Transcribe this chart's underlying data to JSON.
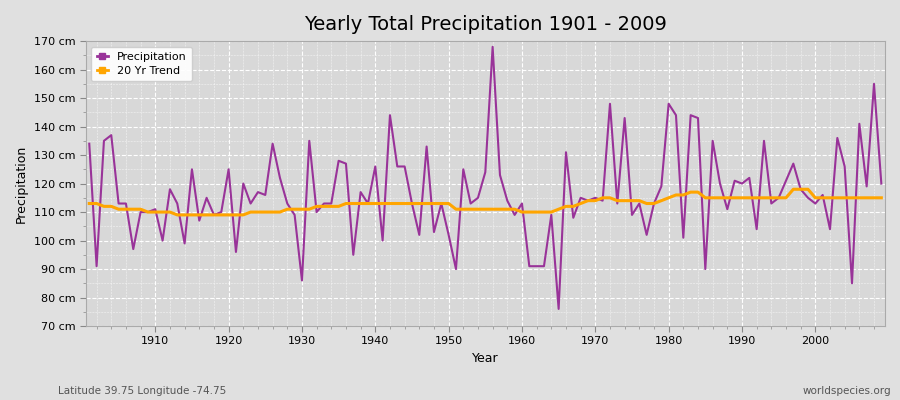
{
  "title": "Yearly Total Precipitation 1901 - 2009",
  "xlabel": "Year",
  "ylabel": "Precipitation",
  "subtitle": "Latitude 39.75 Longitude -74.75",
  "watermark": "worldspecies.org",
  "ylim": [
    70,
    170
  ],
  "yticks": [
    70,
    80,
    90,
    100,
    110,
    120,
    130,
    140,
    150,
    160,
    170
  ],
  "ytick_labels": [
    "70 cm",
    "80 cm",
    "90 cm",
    "100 cm",
    "110 cm",
    "120 cm",
    "130 cm",
    "140 cm",
    "150 cm",
    "160 cm",
    "170 cm"
  ],
  "xlim": [
    1901,
    2009
  ],
  "xticks": [
    1910,
    1920,
    1930,
    1940,
    1950,
    1960,
    1970,
    1980,
    1990,
    2000
  ],
  "precip_color": "#993399",
  "trend_color": "#FFA500",
  "bg_color": "#E0E0E0",
  "plot_bg_color": "#D8D8D8",
  "grid_color": "#FFFFFF",
  "years": [
    1901,
    1902,
    1903,
    1904,
    1905,
    1906,
    1907,
    1908,
    1909,
    1910,
    1911,
    1912,
    1913,
    1914,
    1915,
    1916,
    1917,
    1918,
    1919,
    1920,
    1921,
    1922,
    1923,
    1924,
    1925,
    1926,
    1927,
    1928,
    1929,
    1930,
    1931,
    1932,
    1933,
    1934,
    1935,
    1936,
    1937,
    1938,
    1939,
    1940,
    1941,
    1942,
    1943,
    1944,
    1945,
    1946,
    1947,
    1948,
    1949,
    1950,
    1951,
    1952,
    1953,
    1954,
    1955,
    1956,
    1957,
    1958,
    1959,
    1960,
    1961,
    1962,
    1963,
    1964,
    1965,
    1966,
    1967,
    1968,
    1969,
    1970,
    1971,
    1972,
    1973,
    1974,
    1975,
    1976,
    1977,
    1978,
    1979,
    1980,
    1981,
    1982,
    1983,
    1984,
    1985,
    1986,
    1987,
    1988,
    1989,
    1990,
    1991,
    1992,
    1993,
    1994,
    1995,
    1996,
    1997,
    1998,
    1999,
    2000,
    2001,
    2002,
    2003,
    2004,
    2005,
    2006,
    2007,
    2008,
    2009
  ],
  "precip": [
    134,
    91,
    135,
    137,
    113,
    113,
    97,
    110,
    110,
    111,
    100,
    118,
    113,
    99,
    125,
    107,
    115,
    109,
    110,
    125,
    96,
    120,
    113,
    117,
    116,
    134,
    122,
    113,
    109,
    86,
    135,
    110,
    113,
    113,
    128,
    127,
    95,
    117,
    113,
    126,
    100,
    144,
    126,
    126,
    113,
    102,
    133,
    103,
    113,
    102,
    90,
    125,
    113,
    115,
    124,
    168,
    123,
    114,
    109,
    113,
    91,
    91,
    91,
    109,
    76,
    131,
    108,
    115,
    114,
    115,
    114,
    148,
    113,
    143,
    109,
    113,
    102,
    113,
    119,
    148,
    144,
    101,
    144,
    143,
    90,
    135,
    120,
    111,
    121,
    120,
    122,
    104,
    135,
    113,
    115,
    121,
    127,
    118,
    115,
    113,
    116,
    104,
    136,
    126,
    85,
    141,
    119,
    155,
    120
  ],
  "trend": [
    113,
    113,
    112,
    112,
    111,
    111,
    111,
    111,
    110,
    110,
    110,
    110,
    109,
    109,
    109,
    109,
    109,
    109,
    109,
    109,
    109,
    109,
    110,
    110,
    110,
    110,
    110,
    111,
    111,
    111,
    111,
    112,
    112,
    112,
    112,
    113,
    113,
    113,
    113,
    113,
    113,
    113,
    113,
    113,
    113,
    113,
    113,
    113,
    113,
    113,
    111,
    111,
    111,
    111,
    111,
    111,
    111,
    111,
    111,
    110,
    110,
    110,
    110,
    110,
    111,
    112,
    112,
    113,
    114,
    114,
    115,
    115,
    114,
    114,
    114,
    114,
    113,
    113,
    114,
    115,
    116,
    116,
    117,
    117,
    115,
    115,
    115,
    115,
    115,
    115,
    115,
    115,
    115,
    115,
    115,
    115,
    118,
    118,
    118,
    115,
    115,
    115,
    115,
    115,
    115,
    115,
    115,
    115,
    115
  ],
  "legend_entries": [
    "Precipitation",
    "20 Yr Trend"
  ],
  "title_fontsize": 14,
  "axis_fontsize": 9,
  "tick_fontsize": 8
}
